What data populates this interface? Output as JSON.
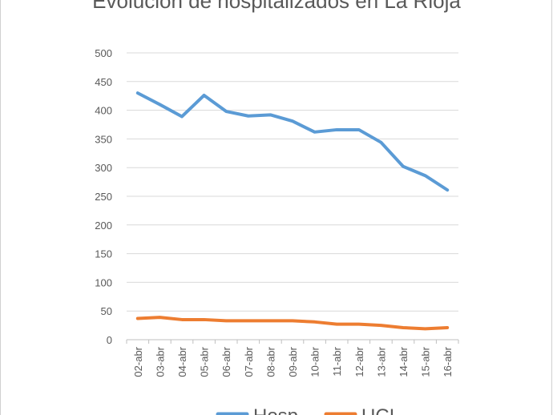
{
  "chart_data": {
    "type": "line",
    "title": "Evolución de hospitalizados en La Rioja",
    "categories": [
      "02-abr",
      "03-abr",
      "04-abr",
      "05-abr",
      "06-abr",
      "07-abr",
      "08-abr",
      "09-abr",
      "10-abr",
      "11-abr",
      "12-abr",
      "13-abr",
      "14-abr",
      "15-abr",
      "16-abr"
    ],
    "series": [
      {
        "name": "Hosp",
        "color": "#5b9bd5",
        "values": [
          430,
          410,
          389,
          426,
          398,
          390,
          392,
          381,
          362,
          366,
          366,
          344,
          302,
          286,
          261
        ]
      },
      {
        "name": "UCI",
        "color": "#ed7d31",
        "values": [
          37,
          39,
          35,
          35,
          33,
          33,
          33,
          33,
          31,
          27,
          27,
          25,
          21,
          19,
          21
        ]
      }
    ],
    "yticks": [
      "0",
      "50",
      "100",
      "150",
      "200",
      "250",
      "300",
      "350",
      "400",
      "450",
      "500"
    ],
    "ylim": [
      0,
      500
    ],
    "grid": true,
    "legend_position": "bottom"
  }
}
